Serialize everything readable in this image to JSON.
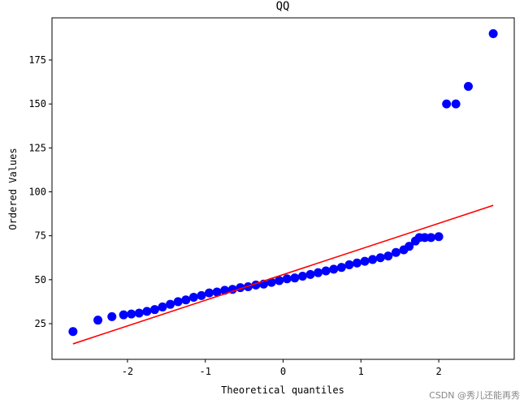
{
  "chart_data": {
    "type": "scatter",
    "title": "QQ",
    "x_label": "Theoretical quantiles",
    "y_label": "Ordered Values",
    "xlim": [
      -2.97,
      2.97
    ],
    "ylim": [
      4.7,
      199
    ],
    "xticks": [
      -2,
      -1,
      0,
      1,
      2
    ],
    "yticks": [
      25,
      50,
      75,
      100,
      125,
      150,
      175
    ],
    "series": [
      {
        "color": "#0000ff",
        "x": [
          -2.7,
          -2.38,
          -2.2,
          -2.05,
          -1.95,
          -1.85,
          -1.75,
          -1.65,
          -1.55,
          -1.45,
          -1.35,
          -1.25,
          -1.15,
          -1.05,
          -0.95,
          -0.85,
          -0.75,
          -0.65,
          -0.55,
          -0.45,
          -0.35,
          -0.25,
          -0.15,
          -0.05,
          0.05,
          0.15,
          0.25,
          0.35,
          0.45,
          0.55,
          0.65,
          0.75,
          0.85,
          0.95,
          1.05,
          1.15,
          1.25,
          1.35,
          1.45,
          1.55,
          1.62,
          1.7,
          1.75,
          1.82,
          1.9,
          2.0,
          2.1,
          2.22,
          2.38,
          2.7
        ],
        "values": [
          20.5,
          27,
          29,
          30,
          30.5,
          31,
          32,
          33,
          34.5,
          36,
          37.5,
          38.5,
          40,
          41,
          42.5,
          43,
          44,
          44.5,
          45.5,
          46,
          47,
          47.5,
          48.5,
          49.5,
          50.5,
          51,
          52,
          53,
          54,
          55,
          56,
          57,
          58.5,
          59.5,
          60.5,
          61.5,
          62.5,
          63.5,
          65.5,
          67,
          69,
          72,
          74,
          74,
          74,
          74.5,
          150,
          150,
          160,
          190
        ]
      }
    ],
    "fit_line": {
      "color": "#ff0000",
      "x": [
        -2.7,
        2.7
      ],
      "values": [
        13.5,
        92.3
      ]
    },
    "watermark": "CSDN @秀儿还能再秀"
  }
}
